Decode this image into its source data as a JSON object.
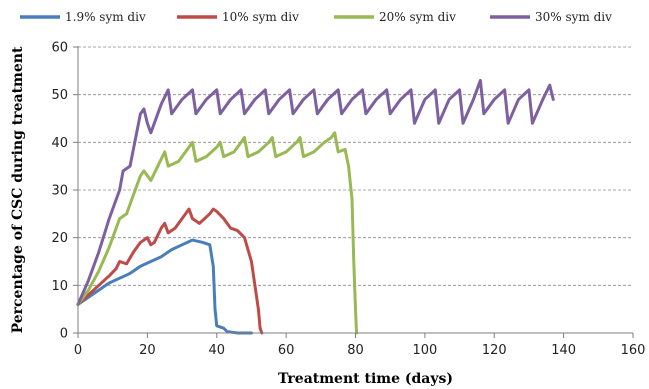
{
  "chart_data": {
    "type": "line",
    "title": "",
    "xlabel": "Treatment time (days)",
    "ylabel": "Percentage of CSC during treatment",
    "xlim": [
      0,
      160
    ],
    "ylim": [
      0,
      60
    ],
    "x_ticks": [
      "0",
      "20",
      "40",
      "60",
      "80",
      "100",
      "120",
      "140",
      "160"
    ],
    "y_ticks": [
      "0",
      "10",
      "20",
      "30",
      "40",
      "50",
      "60"
    ],
    "grid": "horizontal dashed",
    "legend_position": "top",
    "series": [
      {
        "name": "1.9% sym div",
        "color": "#4a7ebb",
        "points": [
          [
            0,
            6
          ],
          [
            3,
            7.5
          ],
          [
            6,
            9
          ],
          [
            9,
            10.5
          ],
          [
            12,
            11.5
          ],
          [
            15,
            12.5
          ],
          [
            18,
            14
          ],
          [
            21,
            15
          ],
          [
            24,
            16
          ],
          [
            27,
            17.5
          ],
          [
            30,
            18.5
          ],
          [
            33,
            19.5
          ],
          [
            36,
            19
          ],
          [
            38,
            18.5
          ],
          [
            39,
            14
          ],
          [
            39.5,
            5
          ],
          [
            40,
            1.5
          ],
          [
            42,
            1
          ],
          [
            43,
            0.3
          ],
          [
            46,
            0
          ],
          [
            50,
            0
          ]
        ]
      },
      {
        "name": "10% sym div",
        "color": "#be4b48",
        "points": [
          [
            0,
            6
          ],
          [
            3,
            8
          ],
          [
            6,
            10
          ],
          [
            9,
            12
          ],
          [
            11,
            13.5
          ],
          [
            12,
            15
          ],
          [
            14,
            14.5
          ],
          [
            16,
            17
          ],
          [
            18,
            19
          ],
          [
            20,
            20
          ],
          [
            21,
            18.5
          ],
          [
            22,
            19
          ],
          [
            24,
            22
          ],
          [
            25,
            23
          ],
          [
            26,
            21
          ],
          [
            28,
            22
          ],
          [
            31,
            25
          ],
          [
            32,
            26
          ],
          [
            33,
            24
          ],
          [
            35,
            23
          ],
          [
            38,
            25
          ],
          [
            39,
            26
          ],
          [
            40,
            25.5
          ],
          [
            42,
            24
          ],
          [
            44,
            22
          ],
          [
            46,
            21.5
          ],
          [
            48,
            20
          ],
          [
            50,
            15
          ],
          [
            51,
            10
          ],
          [
            52,
            5
          ],
          [
            52.5,
            1
          ],
          [
            53,
            0
          ]
        ]
      },
      {
        "name": "20% sym div",
        "color": "#98b954",
        "points": [
          [
            0,
            6
          ],
          [
            3,
            9
          ],
          [
            6,
            13
          ],
          [
            9,
            18
          ],
          [
            12,
            24
          ],
          [
            14,
            25
          ],
          [
            16,
            29
          ],
          [
            18,
            33
          ],
          [
            19,
            34
          ],
          [
            21,
            32
          ],
          [
            23,
            35
          ],
          [
            25,
            38
          ],
          [
            26,
            35
          ],
          [
            29,
            36
          ],
          [
            32,
            39
          ],
          [
            33,
            40
          ],
          [
            34,
            36
          ],
          [
            37,
            37
          ],
          [
            40,
            39
          ],
          [
            41,
            40
          ],
          [
            42,
            37
          ],
          [
            45,
            38
          ],
          [
            47,
            40
          ],
          [
            48,
            41
          ],
          [
            49,
            37
          ],
          [
            52,
            38
          ],
          [
            55,
            40
          ],
          [
            56,
            41
          ],
          [
            57,
            37
          ],
          [
            60,
            38
          ],
          [
            63,
            40
          ],
          [
            64,
            41
          ],
          [
            65,
            37
          ],
          [
            68,
            38
          ],
          [
            71,
            40
          ],
          [
            73,
            41
          ],
          [
            74,
            42
          ],
          [
            75,
            38
          ],
          [
            77,
            38.5
          ],
          [
            78,
            35
          ],
          [
            79,
            28
          ],
          [
            79.5,
            15
          ],
          [
            80,
            5
          ],
          [
            80.3,
            0
          ]
        ]
      },
      {
        "name": "30% sym div",
        "color": "#7d60a0",
        "points": [
          [
            0,
            6
          ],
          [
            3,
            11
          ],
          [
            6,
            17
          ],
          [
            9,
            24
          ],
          [
            12,
            30
          ],
          [
            13,
            34
          ],
          [
            15,
            35
          ],
          [
            18,
            46
          ],
          [
            19,
            47
          ],
          [
            20,
            44
          ],
          [
            21,
            42
          ],
          [
            24,
            48
          ],
          [
            26,
            51
          ],
          [
            27,
            46
          ],
          [
            30,
            49
          ],
          [
            33,
            51
          ],
          [
            34,
            46
          ],
          [
            37,
            49
          ],
          [
            40,
            51
          ],
          [
            41,
            46
          ],
          [
            44,
            49
          ],
          [
            47,
            51
          ],
          [
            48,
            46
          ],
          [
            51,
            49
          ],
          [
            54,
            51
          ],
          [
            55,
            46
          ],
          [
            58,
            49
          ],
          [
            61,
            51
          ],
          [
            62,
            46
          ],
          [
            65,
            49
          ],
          [
            68,
            51
          ],
          [
            69,
            46
          ],
          [
            72,
            49
          ],
          [
            75,
            51
          ],
          [
            76,
            46
          ],
          [
            79,
            49
          ],
          [
            82,
            51
          ],
          [
            83,
            46
          ],
          [
            86,
            49
          ],
          [
            89,
            51
          ],
          [
            90,
            46
          ],
          [
            93,
            49
          ],
          [
            96,
            51
          ],
          [
            97,
            44
          ],
          [
            100,
            49
          ],
          [
            103,
            51
          ],
          [
            104,
            44
          ],
          [
            107,
            49
          ],
          [
            110,
            51
          ],
          [
            111,
            44
          ],
          [
            114,
            49
          ],
          [
            116,
            53
          ],
          [
            117,
            46
          ],
          [
            120,
            49
          ],
          [
            123,
            51
          ],
          [
            124,
            44
          ],
          [
            127,
            49
          ],
          [
            130,
            51
          ],
          [
            131,
            44
          ],
          [
            134,
            49
          ],
          [
            136,
            52
          ],
          [
            137,
            49
          ]
        ]
      }
    ]
  }
}
